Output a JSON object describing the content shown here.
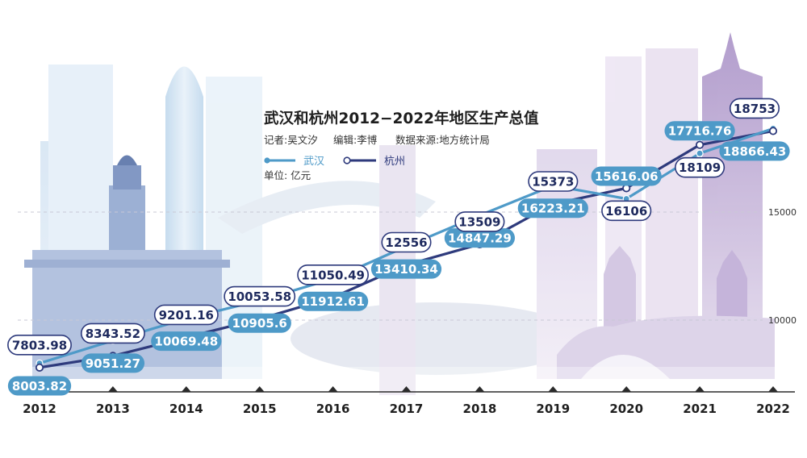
{
  "chart_data": {
    "type": "line",
    "title": "武汉和杭州2012−2022年地区生产总值",
    "credits": {
      "reporter": "记者:吴文汐",
      "editor": "编辑:李博",
      "source": "数据来源:地方统计局"
    },
    "unit": "单位: 亿元",
    "categories": [
      "2012",
      "2013",
      "2014",
      "2015",
      "2016",
      "2017",
      "2018",
      "2019",
      "2020",
      "2021",
      "2022"
    ],
    "series": [
      {
        "name": "武汉",
        "color": "#4e9ac8",
        "values": [
          8003.82,
          9051.27,
          10069.48,
          10905.6,
          11912.61,
          13410.34,
          14847.29,
          16223.21,
          15616.06,
          17716.76,
          18866.43
        ],
        "labels": [
          "8003.82",
          "9051.27",
          "10069.48",
          "10905.6",
          "11912.61",
          "13410.34",
          "14847.29",
          "16223.21",
          "15616.06",
          "17716.76",
          "18866.43"
        ]
      },
      {
        "name": "杭州",
        "color": "#2e3a7c",
        "values": [
          7803.98,
          8343.52,
          9201.16,
          10053.58,
          11050.49,
          12556,
          13509,
          15373,
          16106,
          18109,
          18753
        ],
        "labels": [
          "7803.98",
          "8343.52",
          "9201.16",
          "10053.58",
          "11050.49",
          "12556",
          "13509",
          "15373",
          "16106",
          "18109",
          "18753"
        ]
      }
    ],
    "yticks": [
      "10000",
      "15000"
    ],
    "ylim": [
      6500,
      20000
    ],
    "grid": false,
    "legend": "top-left"
  }
}
